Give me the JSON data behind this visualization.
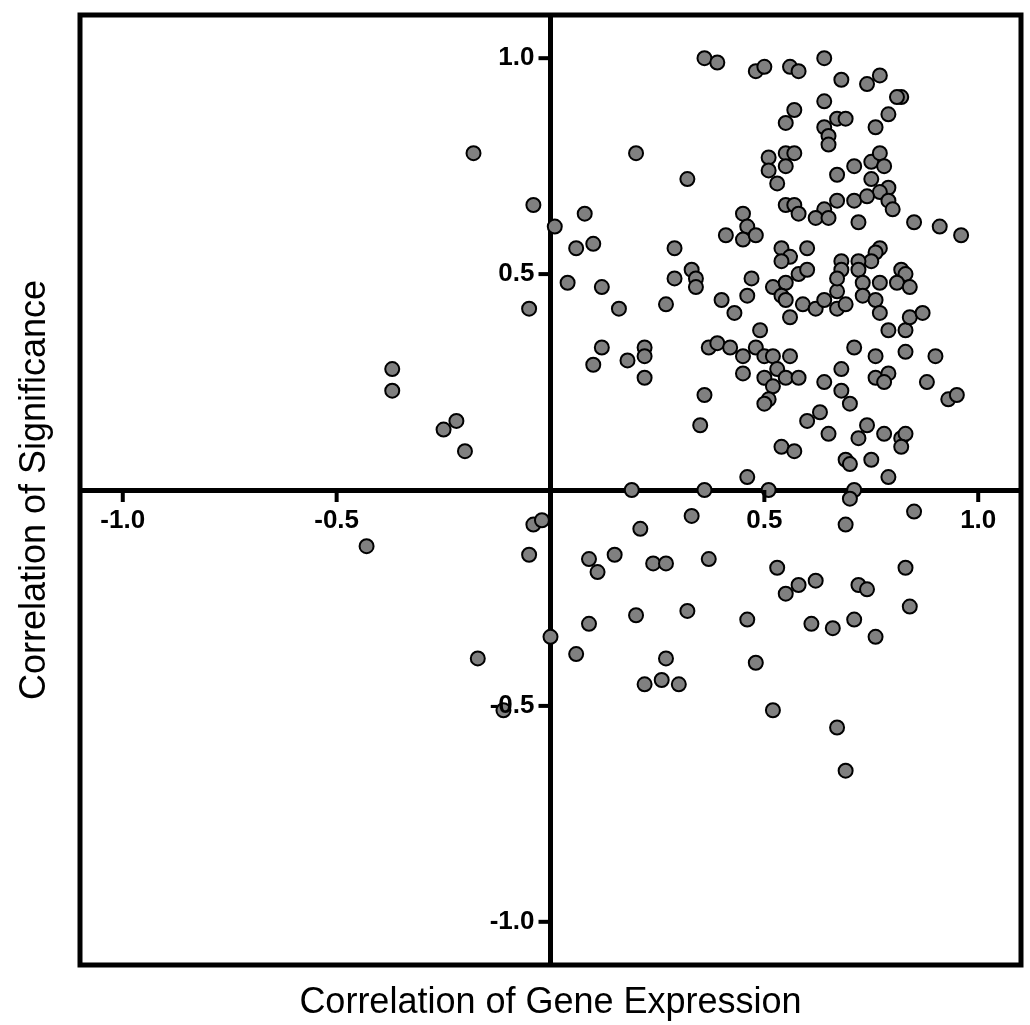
{
  "chart_data": {
    "type": "scatter",
    "xlabel": "Correlation of Gene Expression",
    "ylabel": "Correlation of Significance",
    "color": "#808080",
    "marker": "circle",
    "xlim": [
      -1.1,
      1.1
    ],
    "ylim": [
      -1.1,
      1.1
    ],
    "xticks": [
      {
        "value": -1,
        "label": "-1.0"
      },
      {
        "value": -0.5,
        "label": "-0.5"
      },
      {
        "value": 0.5,
        "label": "0.5"
      },
      {
        "value": 1,
        "label": "1.0"
      }
    ],
    "yticks": [
      {
        "value": -1,
        "label": "-1.0"
      },
      {
        "value": -0.5,
        "label": "-0.5"
      },
      {
        "value": 0.5,
        "label": "0.5"
      },
      {
        "value": 1,
        "label": "1.0"
      }
    ],
    "x": [
      -0.18,
      -0.37,
      -0.37,
      -0.22,
      -0.25,
      -0.2,
      -0.04,
      -0.05,
      0.01,
      -0.43,
      -0.04,
      -0.02,
      -0.05,
      0.0,
      -0.17,
      -0.11,
      0.36,
      0.39,
      0.48,
      0.2,
      0.32,
      0.08,
      0.1,
      0.06,
      0.29,
      0.41,
      0.45,
      0.46,
      0.45,
      0.48,
      0.33,
      0.5,
      0.56,
      0.58,
      0.64,
      0.68,
      0.74,
      0.77,
      0.82,
      0.81,
      0.57,
      0.55,
      0.64,
      0.67,
      0.69,
      0.64,
      0.65,
      0.65,
      0.76,
      0.79,
      0.51,
      0.55,
      0.57,
      0.51,
      0.55,
      0.53,
      0.67,
      0.71,
      0.75,
      0.77,
      0.78,
      0.75,
      0.79,
      0.77,
      0.79,
      0.8,
      0.67,
      0.71,
      0.74,
      0.64,
      0.62,
      0.65,
      0.72,
      0.55,
      0.57,
      0.58,
      0.85,
      0.91,
      0.96,
      0.54,
      0.56,
      0.54,
      0.6,
      0.77,
      0.76,
      0.75,
      0.68,
      0.72,
      0.82,
      0.04,
      0.12,
      0.16,
      0.29,
      0.34,
      0.34,
      0.27,
      0.4,
      0.43,
      0.46,
      0.47,
      0.12,
      0.1,
      0.18,
      0.22,
      0.22,
      0.22,
      0.37,
      0.39,
      0.42,
      0.45,
      0.45,
      0.48,
      0.49,
      0.36,
      0.35,
      0.46,
      0.19,
      0.36,
      0.58,
      0.6,
      0.68,
      0.72,
      0.83,
      0.81,
      0.84,
      0.52,
      0.55,
      0.54,
      0.55,
      0.59,
      0.62,
      0.64,
      0.67,
      0.67,
      0.67,
      0.69,
      0.73,
      0.73,
      0.76,
      0.77,
      0.77,
      0.56,
      0.5,
      0.52,
      0.56,
      0.53,
      0.5,
      0.55,
      0.58,
      0.52,
      0.51,
      0.5,
      0.71,
      0.68,
      0.76,
      0.76,
      0.79,
      0.78,
      0.64,
      0.68,
      0.7,
      0.79,
      0.83,
      0.84,
      0.87,
      0.83,
      0.9,
      0.88,
      0.93,
      0.95,
      0.63,
      0.6,
      0.65,
      0.74,
      0.72,
      0.78,
      0.82,
      0.83,
      0.82,
      0.54,
      0.57,
      0.69,
      0.7,
      0.75,
      0.79,
      0.51,
      0.71,
      0.7,
      0.33,
      0.21,
      0.09,
      0.11,
      0.15,
      0.24,
      0.27,
      0.37,
      0.09,
      0.2,
      0.32,
      0.06,
      0.27,
      0.22,
      0.26,
      0.3,
      0.46,
      0.48,
      0.52,
      0.53,
      0.58,
      0.55,
      0.62,
      0.61,
      0.66,
      0.71,
      0.72,
      0.74,
      0.76,
      0.69,
      0.85,
      0.83,
      0.84,
      0.67,
      0.69
    ],
    "values": [
      0.78,
      0.28,
      0.23,
      0.16,
      0.14,
      0.09,
      0.66,
      0.42,
      0.61,
      -0.13,
      -0.08,
      -0.07,
      -0.15,
      -0.34,
      -0.39,
      -0.51,
      1.0,
      0.99,
      0.97,
      0.78,
      0.72,
      0.64,
      0.57,
      0.56,
      0.56,
      0.59,
      0.64,
      0.61,
      0.58,
      0.59,
      0.51,
      0.98,
      0.98,
      0.97,
      1.0,
      0.95,
      0.94,
      0.96,
      0.91,
      0.91,
      0.88,
      0.85,
      0.9,
      0.86,
      0.86,
      0.84,
      0.82,
      0.8,
      0.84,
      0.87,
      0.77,
      0.78,
      0.78,
      0.74,
      0.75,
      0.71,
      0.73,
      0.75,
      0.76,
      0.78,
      0.75,
      0.72,
      0.7,
      0.69,
      0.67,
      0.65,
      0.67,
      0.67,
      0.68,
      0.65,
      0.63,
      0.63,
      0.62,
      0.66,
      0.66,
      0.64,
      0.62,
      0.61,
      0.59,
      0.56,
      0.54,
      0.53,
      0.56,
      0.56,
      0.55,
      0.53,
      0.53,
      0.53,
      0.51,
      0.48,
      0.47,
      0.42,
      0.49,
      0.49,
      0.47,
      0.43,
      0.44,
      0.41,
      0.45,
      0.49,
      0.33,
      0.29,
      0.3,
      0.33,
      0.31,
      0.26,
      0.33,
      0.34,
      0.33,
      0.31,
      0.27,
      0.33,
      0.37,
      0.22,
      0.15,
      0.03,
      0.0,
      0.0,
      0.5,
      0.51,
      0.51,
      0.51,
      0.5,
      0.48,
      0.47,
      0.47,
      0.48,
      0.45,
      0.44,
      0.43,
      0.42,
      0.44,
      0.46,
      0.49,
      0.42,
      0.43,
      0.48,
      0.45,
      0.44,
      0.48,
      0.41,
      0.4,
      0.31,
      0.31,
      0.31,
      0.28,
      0.26,
      0.26,
      0.26,
      0.24,
      0.21,
      0.2,
      0.33,
      0.28,
      0.31,
      0.26,
      0.27,
      0.25,
      0.25,
      0.23,
      0.2,
      0.37,
      0.37,
      0.4,
      0.41,
      0.32,
      0.31,
      0.25,
      0.21,
      0.22,
      0.18,
      0.16,
      0.13,
      0.15,
      0.12,
      0.13,
      0.12,
      0.13,
      0.1,
      0.1,
      0.09,
      0.07,
      0.06,
      0.07,
      0.03,
      0.0,
      0.0,
      -0.02,
      -0.06,
      -0.09,
      -0.16,
      -0.19,
      -0.15,
      -0.17,
      -0.17,
      -0.16,
      -0.31,
      -0.29,
      -0.28,
      -0.38,
      -0.39,
      -0.45,
      -0.44,
      -0.45,
      -0.3,
      -0.4,
      -0.51,
      -0.18,
      -0.22,
      -0.24,
      -0.21,
      -0.31,
      -0.32,
      -0.3,
      -0.22,
      -0.23,
      -0.34,
      -0.08,
      -0.05,
      -0.18,
      -0.27,
      -0.55,
      -0.65
    ]
  }
}
